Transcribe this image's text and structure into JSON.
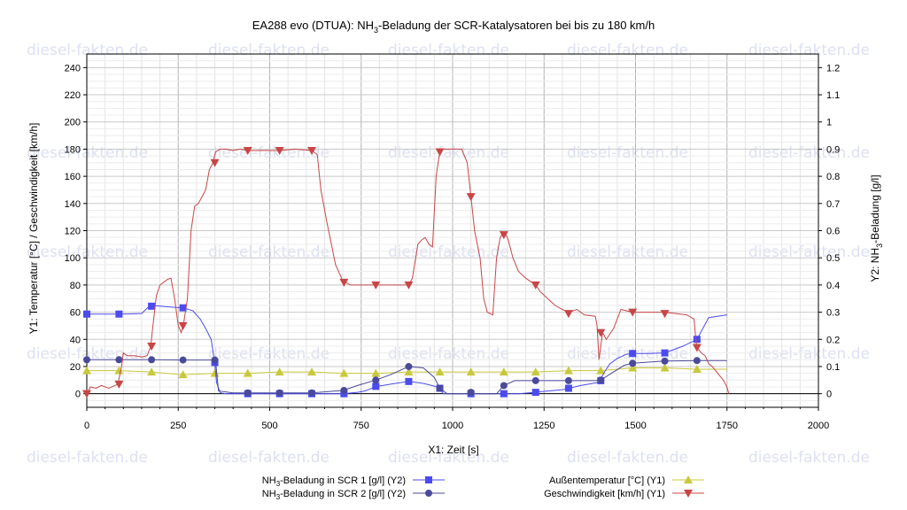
{
  "watermark": "diesel-fakten.de",
  "chart_data": {
    "type": "line",
    "title_parts": [
      "EA288 evo (DTUA): NH",
      "3",
      "-Beladung der SCR-Katalysatoren bei bis zu 180 km/h"
    ],
    "xlabel": "X1: Zeit [s]",
    "ylabel_left": "Y1: Temperatur [°C] / Geschwindigkeit [km/h]",
    "ylabel_right_parts": [
      "Y2: NH",
      "3",
      "-Beladung [g/l]"
    ],
    "xlim": [
      0,
      2000
    ],
    "ylim_left": [
      -10,
      250
    ],
    "ylim_right": [
      -0.05,
      1.25
    ],
    "x_ticks": [
      0,
      250,
      500,
      750,
      1000,
      1250,
      1500,
      1750,
      2000
    ],
    "y_left_ticks": [
      0,
      20,
      40,
      60,
      80,
      100,
      120,
      140,
      160,
      180,
      200,
      220,
      240
    ],
    "y_right_ticks": [
      "0",
      "0.1",
      "0.2",
      "0.3",
      "0.4",
      "0.5",
      "0.6",
      "0.7",
      "0.8",
      "0.9",
      "1",
      "1.1",
      "1.2"
    ],
    "y_right_tick_values": [
      0,
      0.1,
      0.2,
      0.3,
      0.4,
      0.5,
      0.6,
      0.7,
      0.8,
      0.9,
      1.0,
      1.1,
      1.2
    ],
    "grid": true,
    "legend_position": "bottom",
    "series": [
      {
        "name_parts": [
          "NH",
          "3",
          "-Beladung in SCR 1 [g/l] (Y2)"
        ],
        "axis": "right",
        "color": "#4b4bf0",
        "marker": "square",
        "x": [
          0,
          90,
          150,
          165,
          175,
          200,
          240,
          265,
          290,
          310,
          325,
          340,
          350,
          355,
          365,
          380,
          400,
          440,
          480,
          527,
          560,
          615,
          650,
          700,
          740,
          760,
          790,
          830,
          880,
          920,
          950,
          965,
          975,
          1000,
          1050,
          1100,
          1140,
          1180,
          1225,
          1260,
          1300,
          1318,
          1350,
          1400,
          1415,
          1430,
          1450,
          1475,
          1492,
          1530,
          1580,
          1630,
          1668,
          1700,
          1750
        ],
        "y": [
          0.293,
          0.293,
          0.295,
          0.315,
          0.325,
          0.322,
          0.318,
          0.316,
          0.305,
          0.275,
          0.24,
          0.2,
          0.11,
          0.04,
          0.003,
          0.0,
          0.0,
          0.0,
          0.0,
          0.0,
          0.0,
          0.0,
          0.0,
          0.0,
          0.005,
          0.01,
          0.026,
          0.035,
          0.045,
          0.038,
          0.028,
          0.018,
          0.0,
          0.0,
          0.0,
          0.0,
          0.0,
          0.0,
          0.005,
          0.01,
          0.015,
          0.02,
          0.03,
          0.042,
          0.08,
          0.11,
          0.13,
          0.145,
          0.148,
          0.148,
          0.15,
          0.175,
          0.2,
          0.28,
          0.29
        ],
        "marker_x": [
          0,
          88,
          177,
          263,
          350,
          440,
          527,
          615,
          703,
          790,
          880,
          965,
          1050,
          1140,
          1227,
          1317,
          1405,
          1492,
          1580,
          1668
        ],
        "marker_y": [
          0.293,
          0.293,
          0.322,
          0.316,
          0.115,
          0.0,
          0.0,
          0.0,
          0.0,
          0.027,
          0.045,
          0.02,
          0.0,
          0.0,
          0.005,
          0.02,
          0.048,
          0.148,
          0.15,
          0.2
        ]
      },
      {
        "name_parts": [
          "NH",
          "3",
          "-Beladung in SCR 2 [g/l] (Y2)"
        ],
        "axis": "right",
        "color": "#4a4a9a",
        "marker": "circle",
        "x": [
          0,
          88,
          177,
          263,
          340,
          352,
          360,
          400,
          440,
          527,
          615,
          700,
          740,
          790,
          830,
          880,
          920,
          950,
          965,
          985,
          1050,
          1120,
          1140,
          1170,
          1227,
          1317,
          1350,
          1390,
          1405,
          1440,
          1470,
          1492,
          1580,
          1668,
          1750
        ],
        "y": [
          0.125,
          0.125,
          0.125,
          0.124,
          0.124,
          0.12,
          0.01,
          0.003,
          0.003,
          0.003,
          0.003,
          0.012,
          0.03,
          0.05,
          0.07,
          0.1,
          0.095,
          0.06,
          0.02,
          0.0,
          0.0,
          0.0,
          0.03,
          0.048,
          0.048,
          0.048,
          0.048,
          0.048,
          0.05,
          0.08,
          0.105,
          0.112,
          0.12,
          0.122,
          0.122
        ],
        "marker_x": [
          0,
          88,
          177,
          263,
          350,
          440,
          527,
          615,
          703,
          790,
          880,
          965,
          1050,
          1140,
          1227,
          1317,
          1405,
          1492,
          1580,
          1668
        ],
        "marker_y": [
          0.125,
          0.125,
          0.125,
          0.124,
          0.124,
          0.003,
          0.003,
          0.003,
          0.012,
          0.05,
          0.1,
          0.02,
          0.005,
          0.03,
          0.048,
          0.048,
          0.05,
          0.112,
          0.12,
          0.122
        ]
      },
      {
        "name": "Außentemperatur [°C] (Y1)",
        "axis": "left",
        "color": "#c8c83c",
        "marker": "triangle-up",
        "x": [
          0,
          90,
          177,
          263,
          350,
          360,
          440,
          527,
          615,
          703,
          790,
          880,
          965,
          1050,
          1140,
          1227,
          1317,
          1405,
          1450,
          1492,
          1580,
          1668,
          1750
        ],
        "y": [
          17,
          17,
          16,
          14,
          15,
          15,
          15,
          16,
          16,
          15,
          15,
          16,
          16,
          16,
          16,
          16,
          17,
          17,
          18,
          19,
          19,
          18,
          18
        ],
        "marker_x": [
          0,
          88,
          177,
          263,
          350,
          440,
          527,
          615,
          703,
          790,
          880,
          965,
          1050,
          1140,
          1227,
          1317,
          1405,
          1492,
          1580,
          1668
        ],
        "marker_y": [
          17,
          17,
          16,
          14,
          15,
          15,
          16,
          16,
          15,
          15,
          16,
          16,
          16,
          16,
          16,
          17,
          17,
          19,
          19,
          18
        ]
      },
      {
        "name": "Geschwindigkeit [km/h] (Y1)",
        "axis": "left",
        "color": "#c84646",
        "marker": "triangle-down",
        "x": [
          0,
          10,
          25,
          40,
          60,
          85,
          95,
          100,
          110,
          130,
          150,
          165,
          175,
          180,
          190,
          200,
          210,
          220,
          230,
          240,
          250,
          258,
          265,
          275,
          285,
          295,
          305,
          315,
          325,
          335,
          345,
          352,
          365,
          380,
          400,
          420,
          440,
          480,
          527,
          570,
          615,
          630,
          640,
          655,
          680,
          700,
          720,
          750,
          790,
          830,
          870,
          880,
          890,
          905,
          915,
          925,
          935,
          945,
          955,
          965,
          975,
          1000,
          1025,
          1040,
          1050,
          1060,
          1075,
          1085,
          1095,
          1110,
          1120,
          1130,
          1140,
          1150,
          1165,
          1180,
          1200,
          1227,
          1240,
          1260,
          1280,
          1300,
          1318,
          1340,
          1360,
          1390,
          1395,
          1400,
          1410,
          1420,
          1440,
          1460,
          1492,
          1530,
          1580,
          1640,
          1660,
          1665,
          1668,
          1680,
          1690,
          1700,
          1710,
          1740,
          1750,
          1755
        ],
        "y": [
          0,
          5,
          4,
          6,
          4,
          7,
          20,
          30,
          28,
          28,
          27,
          28,
          35,
          48,
          72,
          80,
          82,
          84,
          85,
          70,
          50,
          45,
          52,
          70,
          120,
          138,
          140,
          145,
          150,
          165,
          170,
          178,
          180,
          180,
          179,
          180,
          179,
          179,
          179,
          180,
          179,
          176,
          150,
          128,
          95,
          83,
          80,
          80,
          80,
          80,
          80,
          80,
          85,
          110,
          113,
          115,
          110,
          108,
          160,
          178,
          180,
          180,
          180,
          170,
          145,
          120,
          100,
          70,
          60,
          58,
          100,
          115,
          119,
          115,
          100,
          90,
          85,
          80,
          75,
          70,
          65,
          62,
          60,
          62,
          58,
          57,
          50,
          25,
          45,
          40,
          48,
          62,
          60,
          60,
          60,
          58,
          55,
          40,
          34,
          30,
          28,
          22,
          20,
          10,
          5,
          0
        ],
        "marker_x": [
          0,
          88,
          177,
          263,
          350,
          440,
          527,
          615,
          703,
          790,
          880,
          965,
          1050,
          1140,
          1227,
          1317,
          1405,
          1492,
          1580,
          1668
        ],
        "marker_y": [
          0,
          7,
          35,
          50,
          170,
          179,
          179,
          179,
          82,
          80,
          80,
          178,
          145,
          117,
          80,
          59,
          45,
          60,
          59,
          34
        ]
      }
    ]
  }
}
